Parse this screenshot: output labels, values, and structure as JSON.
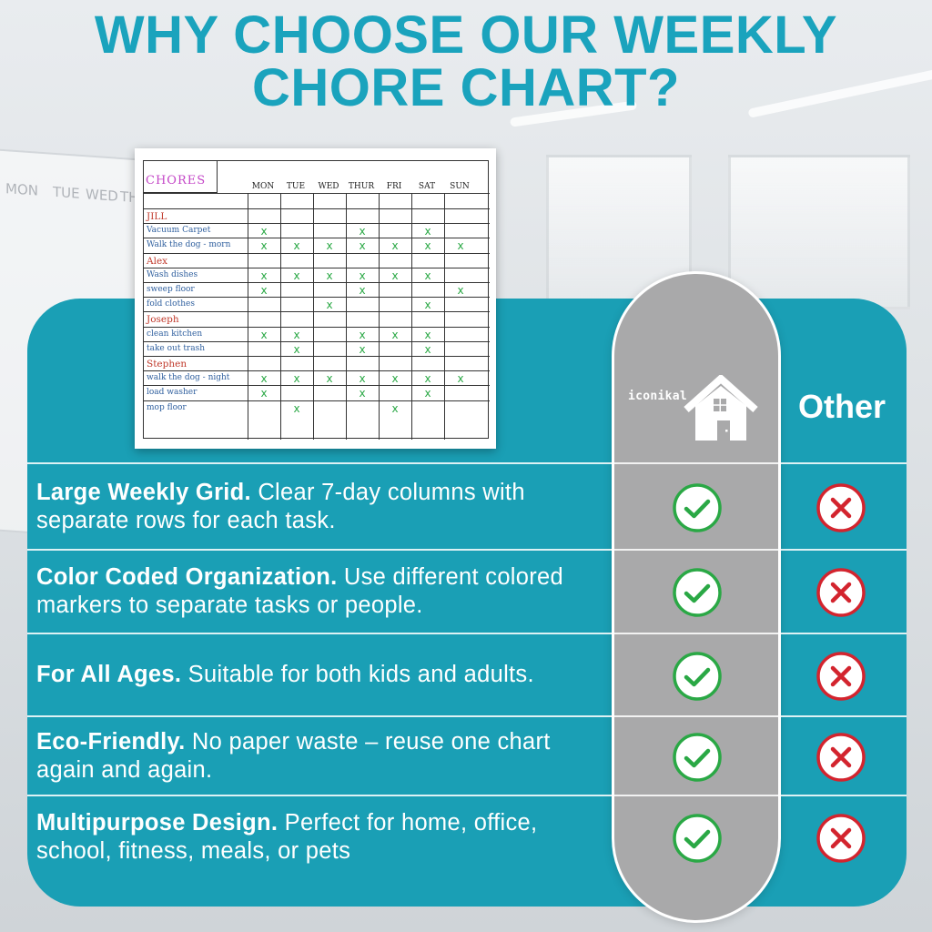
{
  "title": {
    "line1": "WHY CHOOSE OUR WEEKLY",
    "line2": "CHORE CHART?"
  },
  "colors": {
    "accent": "#1aa3bd",
    "panel": "#1a9fb5",
    "pill": "#a9a9aa",
    "check": "#2aa845",
    "cross": "#d3242e"
  },
  "columns": {
    "brand": "iconikal",
    "brand_icon": "house-icon",
    "other": "Other"
  },
  "chart_preview": {
    "title": "CHORES",
    "days": [
      "MON",
      "TUE",
      "WED",
      "THUR",
      "FRI",
      "SAT",
      "SUN"
    ],
    "rows": [
      {
        "name": "JILL",
        "person": true,
        "marks": [
          0,
          0,
          0,
          0,
          0,
          0,
          0
        ]
      },
      {
        "name": "Vacuum Carpet",
        "person": false,
        "marks": [
          1,
          0,
          0,
          1,
          0,
          1,
          0
        ]
      },
      {
        "name": "Walk the dog - morn",
        "person": false,
        "marks": [
          1,
          1,
          1,
          1,
          1,
          1,
          1
        ]
      },
      {
        "name": "Alex",
        "person": true,
        "marks": [
          0,
          0,
          0,
          0,
          0,
          0,
          0
        ]
      },
      {
        "name": "Wash dishes",
        "person": false,
        "marks": [
          1,
          1,
          1,
          1,
          1,
          1,
          0
        ]
      },
      {
        "name": "sweep floor",
        "person": false,
        "marks": [
          1,
          0,
          0,
          1,
          0,
          0,
          1
        ]
      },
      {
        "name": "fold clothes",
        "person": false,
        "marks": [
          0,
          0,
          1,
          0,
          0,
          1,
          0
        ]
      },
      {
        "name": "Joseph",
        "person": true,
        "marks": [
          0,
          0,
          0,
          0,
          0,
          0,
          0
        ]
      },
      {
        "name": "clean kitchen",
        "person": false,
        "marks": [
          1,
          1,
          0,
          1,
          1,
          1,
          0
        ]
      },
      {
        "name": "take out trash",
        "person": false,
        "marks": [
          0,
          1,
          0,
          1,
          0,
          1,
          0
        ]
      },
      {
        "name": "Stephen",
        "person": true,
        "marks": [
          0,
          0,
          0,
          0,
          0,
          0,
          0
        ]
      },
      {
        "name": "walk the dog - night",
        "person": false,
        "marks": [
          1,
          1,
          1,
          1,
          1,
          1,
          1
        ]
      },
      {
        "name": "load washer",
        "person": false,
        "marks": [
          1,
          0,
          0,
          1,
          0,
          1,
          0
        ]
      },
      {
        "name": "mop floor",
        "person": false,
        "marks": [
          0,
          1,
          0,
          0,
          1,
          0,
          0
        ]
      }
    ],
    "mark_symbol": "x"
  },
  "features": [
    {
      "bold": "Large Weekly Grid.",
      "text": " Clear 7-day columns with separate rows for each task.",
      "iconikal": "check-icon",
      "other": "cross-icon"
    },
    {
      "bold": "Color Coded Organization.",
      "text": " Use different colored markers to separate tasks or people.",
      "iconikal": "check-icon",
      "other": "cross-icon"
    },
    {
      "bold": "For All Ages.",
      "text": " Suitable for both kids and adults.",
      "iconikal": "check-icon",
      "other": "cross-icon"
    },
    {
      "bold": "Eco-Friendly.",
      "text": " No paper waste – reuse one chart again and again.",
      "iconikal": "check-icon",
      "other": "cross-icon"
    },
    {
      "bold": "Multipurpose Design.",
      "text": " Perfect for home, office, school, fitness, meals, or pets",
      "iconikal": "check-icon",
      "other": "cross-icon"
    }
  ],
  "background": {
    "board_days": [
      "MON",
      "TUE",
      "WED",
      "TH"
    ]
  }
}
